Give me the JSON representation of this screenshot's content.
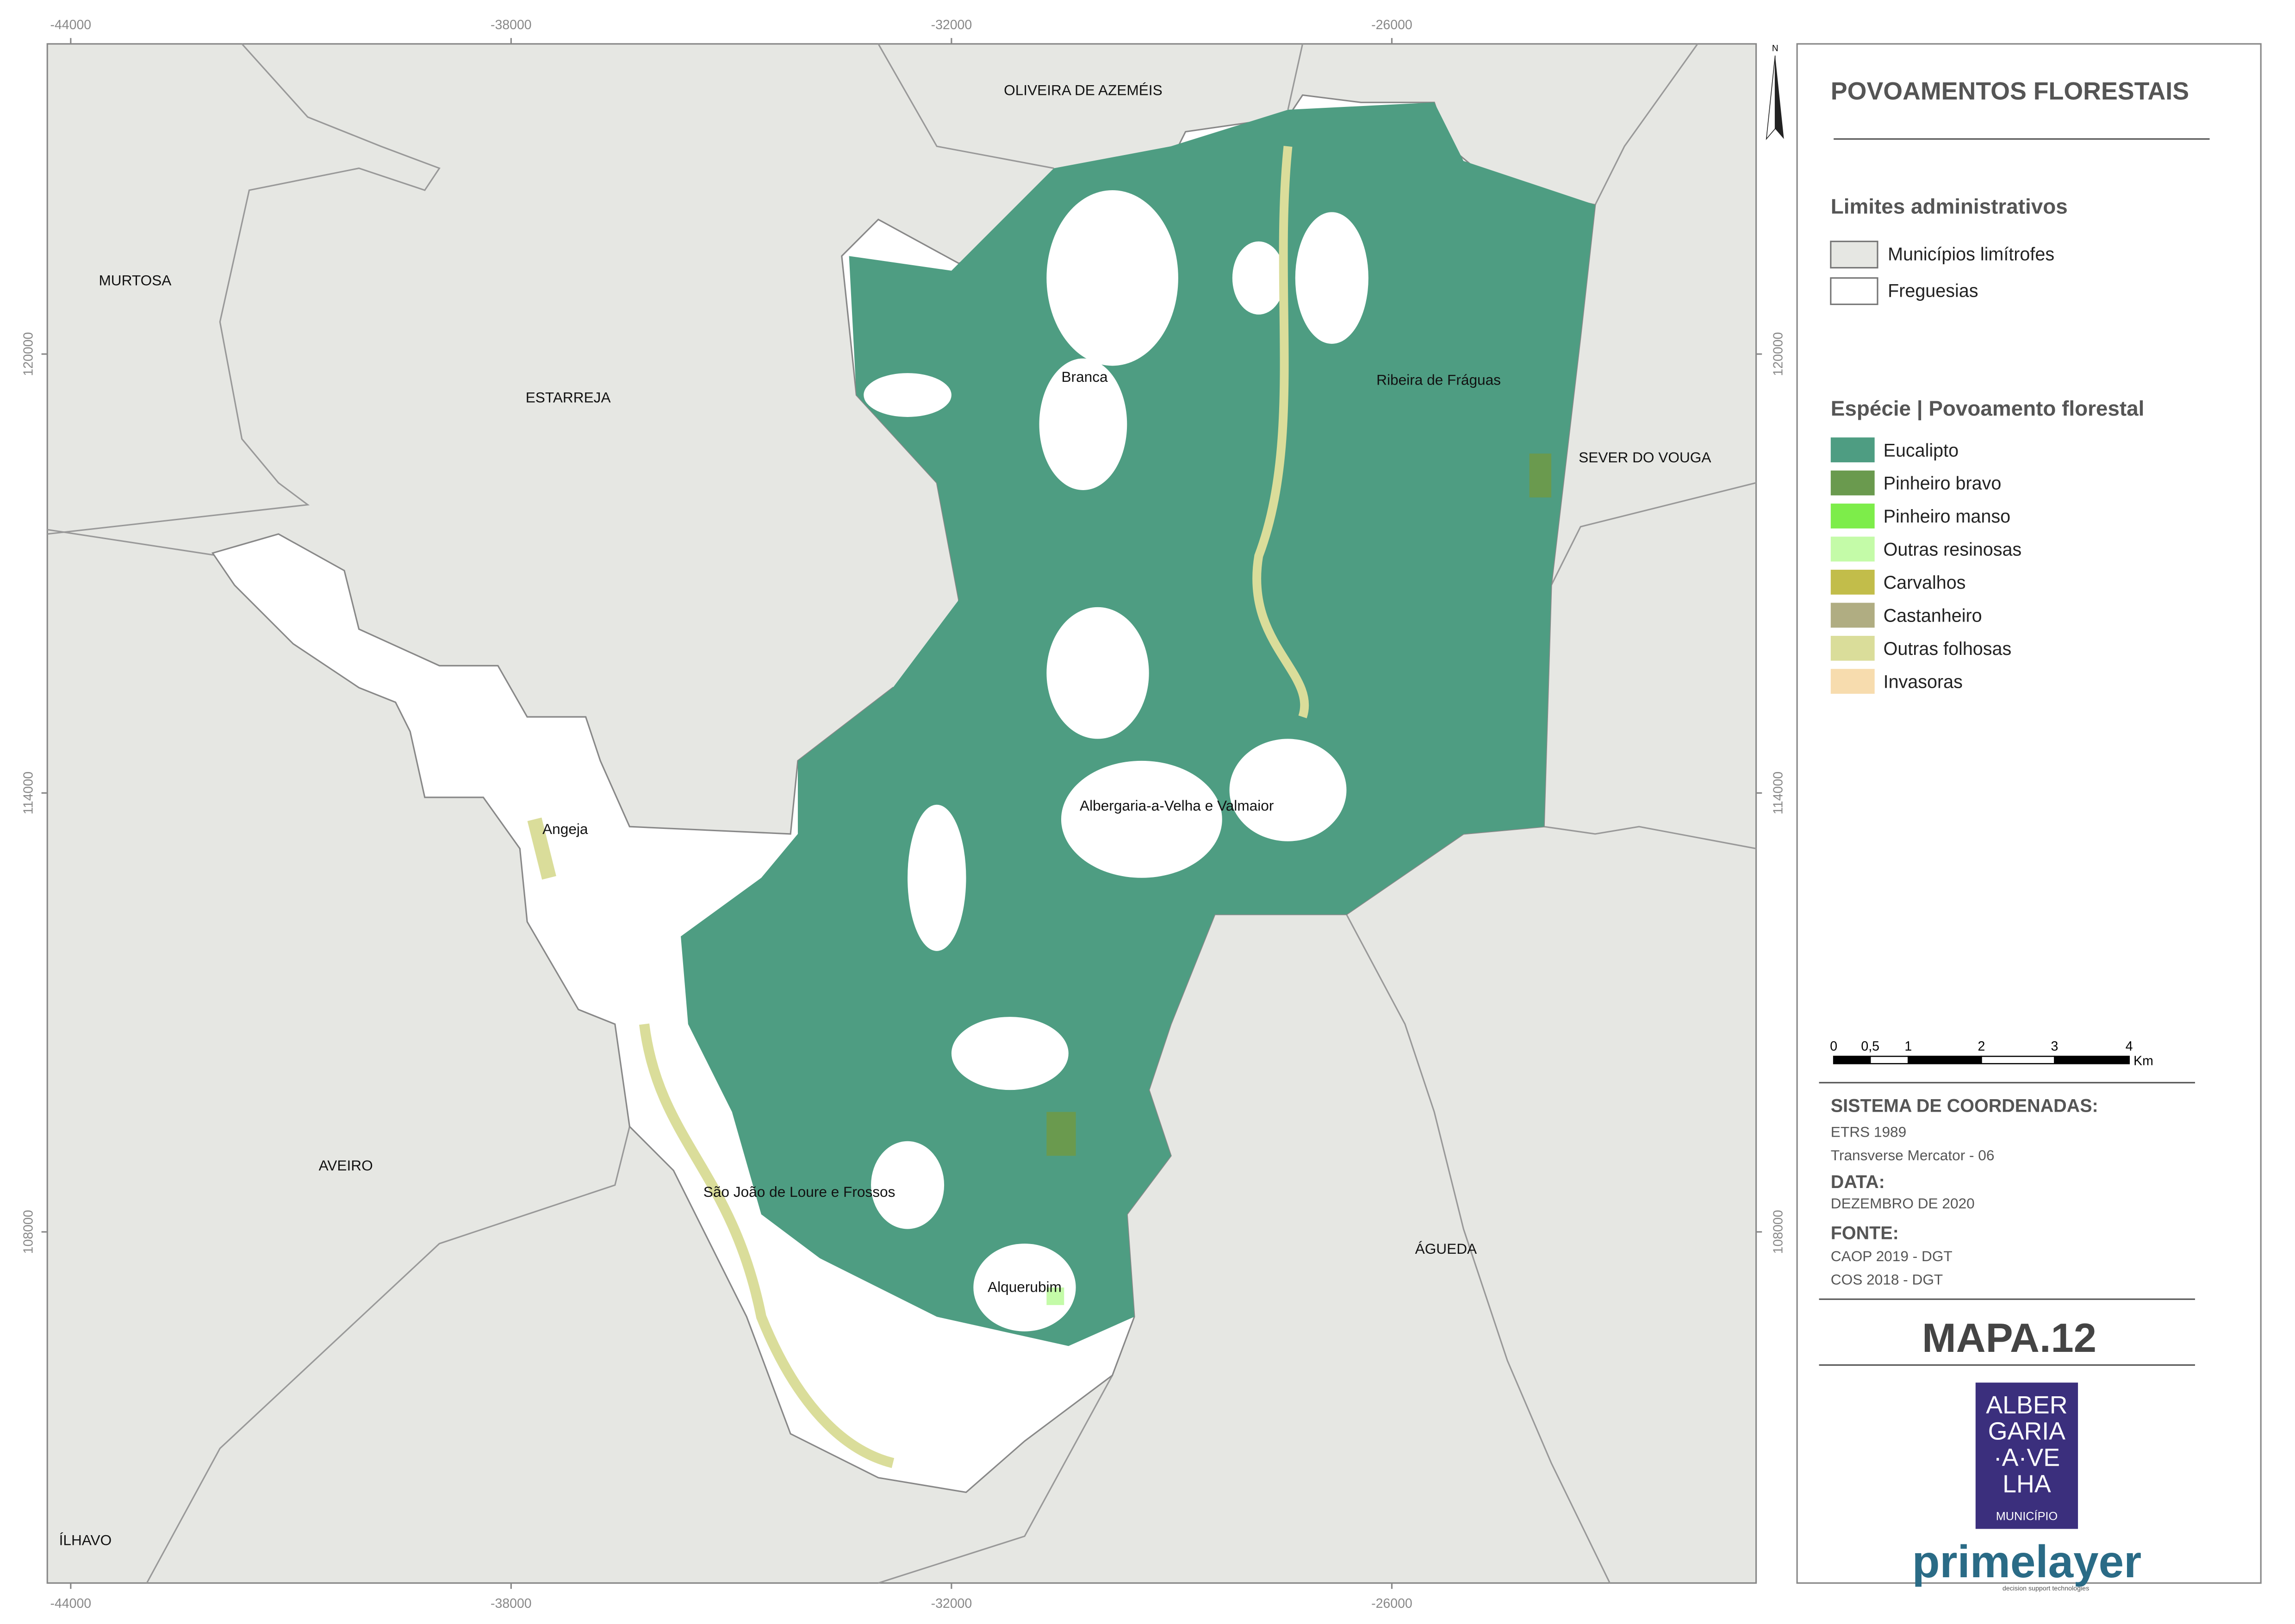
{
  "header": {
    "title": "POVOAMENTOS FLORESTAIS"
  },
  "admin_legend": {
    "title": "Limites administrativos",
    "items": [
      {
        "label": "Municípios limítrofes",
        "color": "#e6e7e3"
      },
      {
        "label": "Freguesias",
        "color": "#ffffff"
      }
    ]
  },
  "species_legend": {
    "title": "Espécie | Povoamento florestal",
    "items": [
      {
        "label": "Eucalipto",
        "color": "#4e9d82"
      },
      {
        "label": "Pinheiro bravo",
        "color": "#6a9a4e"
      },
      {
        "label": "Pinheiro manso",
        "color": "#7ded4a"
      },
      {
        "label": "Outras resinosas",
        "color": "#c4fba8"
      },
      {
        "label": "Carvalhos",
        "color": "#c2bd4a"
      },
      {
        "label": "Castanheiro",
        "color": "#b0ad82"
      },
      {
        "label": "Outras folhosas",
        "color": "#dadd9a"
      },
      {
        "label": "Invasoras",
        "color": "#f7dcae"
      }
    ]
  },
  "places": [
    "OLIVEIRA DE AZEMÉIS",
    "MURTOSA",
    "ESTARREJA",
    "Branca",
    "Ribeira de Fráguas",
    "SEVER DO VOUGA",
    "Angeja",
    "Albergaria-a-Velha e Valmaior",
    "AVEIRO",
    "São João de Loure e Frossos",
    "ÁGUEDA",
    "Alquerubim",
    "ÍLHAVO"
  ],
  "grid": {
    "xticks": [
      -44000,
      -38000,
      -32000,
      -26000
    ],
    "yticks": [
      120000,
      114000,
      108000
    ]
  },
  "scale_bar": {
    "labels": [
      "0",
      "0,5",
      "1",
      "2",
      "3",
      "4"
    ],
    "unit": "Km"
  },
  "info": {
    "coord_heading": "SISTEMA DE COORDENADAS:",
    "coord_lines": [
      "ETRS 1989",
      "Transverse Mercator - 06"
    ],
    "date_heading": "DATA:",
    "date": "DEZEMBRO DE 2020",
    "source_heading": "FONTE:",
    "sources": [
      "CAOP 2019 - DGT",
      "COS 2018 - DGT"
    ]
  },
  "map_id": "MAPA.12",
  "north": "N",
  "logo": {
    "lines": [
      "ALBER",
      "GARIA",
      "·A·VE",
      "LHA"
    ],
    "subtitle": "MUNICÍPIO",
    "company": "primelayer",
    "tagline": "decision support technologies"
  }
}
